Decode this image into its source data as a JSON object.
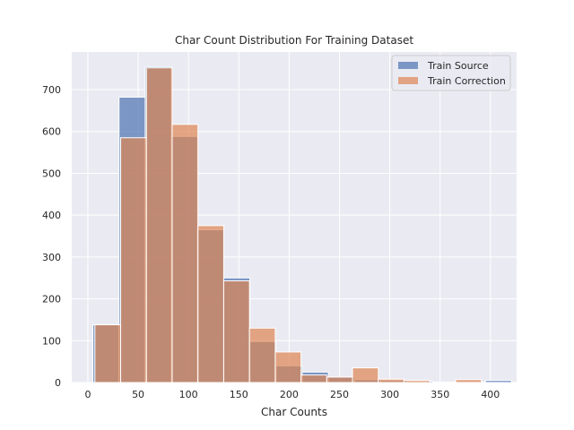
{
  "chart_data": {
    "type": "bar",
    "title": "Char Count Distribution For Training Dataset",
    "xlabel": "Char Counts",
    "ylabel": "",
    "xlim": [
      -16,
      426
    ],
    "ylim": [
      0,
      790
    ],
    "x_ticks": [
      0,
      50,
      100,
      150,
      200,
      250,
      300,
      350,
      400
    ],
    "y_ticks": [
      0,
      100,
      200,
      300,
      400,
      500,
      600,
      700
    ],
    "grid": true,
    "legend_position": "top-right",
    "colors": {
      "background": "#eaeaf2",
      "grid": "#ffffff",
      "text": "#262626"
    },
    "series": [
      {
        "name": "Train Source",
        "color": "#4c72b0",
        "opacity": 0.7,
        "bin_edges": [
          5.0,
          31.0,
          57.0,
          83.0,
          109.0,
          135.0,
          161.0,
          187.0,
          213.0,
          239.0,
          265.0,
          291.0,
          317.0,
          343.0,
          369.0,
          395.0,
          421.0
        ],
        "counts": [
          138,
          682,
          755,
          588,
          365,
          250,
          98,
          40,
          25,
          13,
          7,
          5,
          3,
          1,
          0,
          5
        ]
      },
      {
        "name": "Train Correction",
        "color": "#dd8452",
        "opacity": 0.7,
        "bin_edges": [
          7.0,
          32.6,
          58.2,
          83.8,
          109.4,
          135.0,
          160.6,
          186.2,
          211.8,
          237.4,
          263.0,
          288.6,
          314.2,
          339.8,
          365.4,
          391.0
        ],
        "counts": [
          138,
          585,
          752,
          617,
          375,
          243,
          130,
          73,
          18,
          13,
          35,
          8,
          5,
          0,
          7
        ]
      }
    ]
  }
}
